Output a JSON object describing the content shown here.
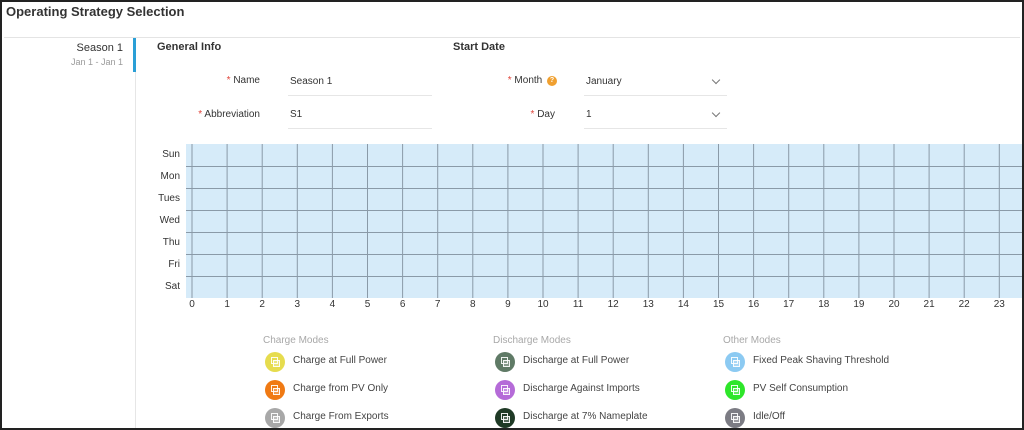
{
  "page": {
    "title": "Operating Strategy Selection"
  },
  "seasons": [
    {
      "name": "Season 1",
      "range": "Jan 1 - Jan 1",
      "active": true
    }
  ],
  "general_info": {
    "heading": "General Info",
    "name_label": "Name",
    "name_value": "Season 1",
    "abbreviation_label": "Abbreviation",
    "abbreviation_value": "S1",
    "required_mark": "*"
  },
  "start_date": {
    "heading": "Start Date",
    "month_label": "Month",
    "month_value": "January",
    "day_label": "Day",
    "day_value": "1",
    "help_symbol": "?"
  },
  "schedule": {
    "days": [
      "Sun",
      "Mon",
      "Tues",
      "Wed",
      "Thu",
      "Fri",
      "Sat"
    ],
    "hours": [
      "0",
      "1",
      "2",
      "3",
      "4",
      "5",
      "6",
      "7",
      "8",
      "9",
      "10",
      "11",
      "12",
      "13",
      "14",
      "15",
      "16",
      "17",
      "18",
      "19",
      "20",
      "21",
      "22",
      "23"
    ],
    "cell_color": "#d6ebf9",
    "line_color": "#8a9aa8"
  },
  "legend": {
    "charge": {
      "heading": "Charge Modes",
      "items": [
        {
          "label": "Charge at Full Power",
          "color": "#e6dc4e",
          "icon": "mode-icon"
        },
        {
          "label": "Charge from PV Only",
          "color": "#f07a14",
          "icon": "mode-icon"
        },
        {
          "label": "Charge From Exports",
          "color": "#a8a8a8",
          "icon": "mode-icon"
        }
      ]
    },
    "discharge": {
      "heading": "Discharge Modes",
      "items": [
        {
          "label": "Discharge at Full Power",
          "color": "#5f7a66",
          "icon": "mode-icon"
        },
        {
          "label": "Discharge Against Imports",
          "color": "#b56bd8",
          "icon": "mode-icon"
        },
        {
          "label": "Discharge at 7% Nameplate",
          "color": "#1f3a26",
          "icon": "mode-icon"
        }
      ]
    },
    "other": {
      "heading": "Other Modes",
      "items": [
        {
          "label": "Fixed Peak Shaving Threshold",
          "color": "#8ccaf2",
          "icon": "mode-icon"
        },
        {
          "label": "PV Self Consumption",
          "color": "#2ee62a",
          "icon": "mode-icon"
        },
        {
          "label": "Idle/Off",
          "color": "#7c7c84",
          "icon": "mode-icon"
        }
      ]
    }
  }
}
